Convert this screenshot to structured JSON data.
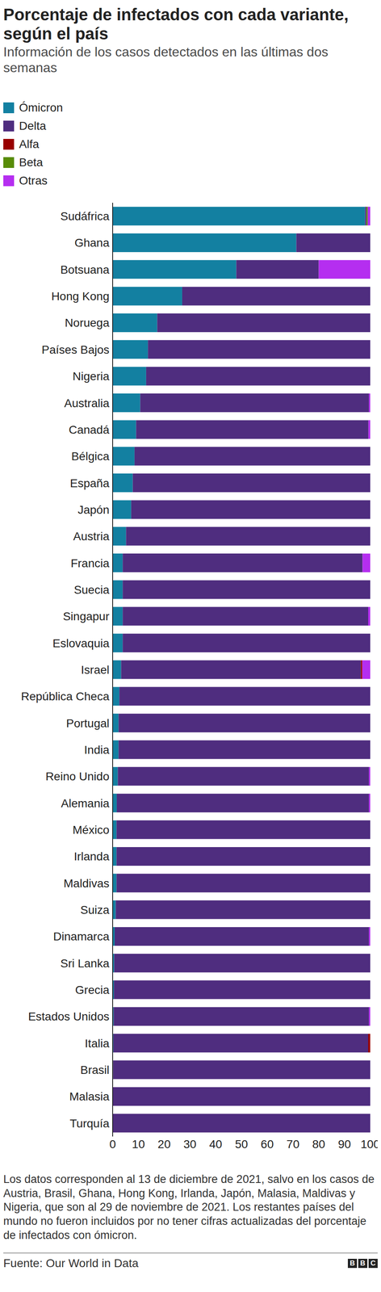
{
  "chart_data": {
    "type": "bar",
    "orientation": "horizontal",
    "stacked": true,
    "grid": false,
    "legend": "top-left",
    "data_labels": false,
    "title": "Porcentaje de infectados con cada variante, según el país",
    "subtitle": "Información de los casos detectados en las últimas dos semanas",
    "categories": [
      "Sudáfrica",
      "Ghana",
      "Botsuana",
      "Hong Kong",
      "Noruega",
      "Países Bajos",
      "Nigeria",
      "Australia",
      "Canadá",
      "Bélgica",
      "España",
      "Japón",
      "Austria",
      "Francia",
      "Suecia",
      "Singapur",
      "Eslovaquia",
      "Israel",
      "República Checa",
      "Portugal",
      "India",
      "Reino Unido",
      "Alemania",
      "México",
      "Irlanda",
      "Maldivas",
      "Suiza",
      "Dinamarca",
      "Sri Lanka",
      "Grecia",
      "Estados Unidos",
      "Italia",
      "Brasil",
      "Malasia",
      "Turquía"
    ],
    "series": [
      {
        "name": "Ómicron",
        "color": "#1380a1",
        "values": [
          98,
          71.3,
          48,
          27,
          17.3,
          13.7,
          13,
          10.7,
          9.1,
          8.5,
          7.8,
          7.2,
          5.2,
          3.9,
          3.9,
          3.9,
          3.9,
          3.3,
          2.6,
          2.3,
          2.3,
          2,
          1.6,
          1.5,
          1.5,
          1.5,
          1.2,
          0.8,
          0.6,
          0.5,
          0.4,
          0.3,
          0.2,
          0.1,
          0.1
        ]
      },
      {
        "name": "Delta",
        "color": "#4f2d7f",
        "values": [
          0.5,
          28.7,
          32,
          73,
          82.7,
          86.3,
          87,
          88.8,
          90.2,
          91.5,
          92.2,
          92.8,
          94.8,
          93.1,
          96.1,
          95.3,
          96.1,
          93.1,
          97.4,
          97.7,
          97.7,
          97.5,
          97.9,
          98.5,
          98.5,
          98.5,
          98.8,
          98.7,
          99.4,
          99.5,
          99.1,
          98.9,
          99.8,
          99.9,
          99.9
        ]
      },
      {
        "name": "Alfa",
        "color": "#990000",
        "values": [
          0,
          0,
          0,
          0,
          0,
          0,
          0,
          0,
          0,
          0,
          0,
          0,
          0,
          0,
          0,
          0,
          0,
          0.5,
          0,
          0,
          0,
          0,
          0,
          0,
          0,
          0,
          0,
          0,
          0,
          0,
          0,
          0.8,
          0,
          0,
          0
        ]
      },
      {
        "name": "Beta",
        "color": "#588c07",
        "values": [
          0.5,
          0,
          0,
          0,
          0,
          0,
          0,
          0,
          0,
          0,
          0,
          0,
          0,
          0,
          0,
          0,
          0,
          0,
          0,
          0,
          0,
          0,
          0,
          0,
          0,
          0,
          0,
          0,
          0,
          0,
          0,
          0,
          0,
          0,
          0
        ]
      },
      {
        "name": "Otras",
        "color": "#b52ef0",
        "values": [
          1,
          0,
          20,
          0,
          0,
          0,
          0,
          0.5,
          0.7,
          0,
          0,
          0,
          0,
          3,
          0,
          0.8,
          0,
          3.1,
          0,
          0,
          0,
          0.5,
          0.5,
          0,
          0,
          0,
          0,
          0.5,
          0,
          0,
          0.5,
          0,
          0,
          0,
          0
        ]
      }
    ],
    "xlim": [
      0,
      100
    ],
    "xticks": [
      0,
      10,
      20,
      30,
      40,
      50,
      60,
      70,
      80,
      90,
      100
    ],
    "note": "Los datos corresponden al 13 de diciembre de 2021, salvo en los casos de Austria, Brasil, Ghana, Hong Kong, Irlanda, Japón, Malasia, Maldivas y Nigeria, que son al 29 de noviembre de 2021. Los restantes países del mundo no fueron incluidos por no tener cifras actualizadas del porcentaje de infectados con ómicron.",
    "source": "Fuente: Our World in Data",
    "logo": "BBC"
  }
}
